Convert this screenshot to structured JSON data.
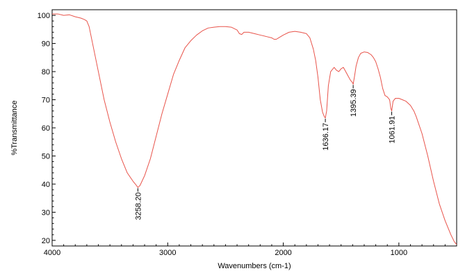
{
  "chart_data": {
    "type": "line",
    "xlabel": "Wavenumbers (cm-1)",
    "ylabel": "%Transmittance",
    "xlim": [
      4000,
      500
    ],
    "ylim": [
      18,
      102
    ],
    "x_reversed": true,
    "x_ticks": [
      4000,
      3000,
      2000,
      1000
    ],
    "y_ticks": [
      20,
      30,
      40,
      50,
      60,
      70,
      80,
      90,
      100
    ],
    "grid": false,
    "legend": "none",
    "line_color": "#e8534a",
    "series": [
      {
        "x": [
          4000,
          3950,
          3900,
          3850,
          3800,
          3750,
          3720,
          3700,
          3680,
          3650,
          3600,
          3550,
          3500,
          3450,
          3400,
          3350,
          3300,
          3270,
          3258.2,
          3240,
          3200,
          3150,
          3100,
          3050,
          3000,
          2950,
          2900,
          2850,
          2800,
          2750,
          2700,
          2650,
          2600,
          2550,
          2500,
          2450,
          2400,
          2380,
          2360,
          2340,
          2300,
          2250,
          2200,
          2150,
          2100,
          2080,
          2060,
          2040,
          2000,
          1950,
          1900,
          1850,
          1800,
          1770,
          1740,
          1720,
          1700,
          1680,
          1660,
          1645,
          1636.17,
          1625,
          1610,
          1590,
          1560,
          1540,
          1520,
          1500,
          1480,
          1460,
          1440,
          1420,
          1400,
          1395.39,
          1385,
          1370,
          1350,
          1330,
          1300,
          1270,
          1240,
          1220,
          1200,
          1180,
          1160,
          1140,
          1120,
          1100,
          1080,
          1070,
          1061.91,
          1050,
          1030,
          1000,
          970,
          940,
          900,
          870,
          850,
          800,
          750,
          700,
          650,
          600,
          550,
          520,
          500
        ],
        "y": [
          100.5,
          100.5,
          100,
          100.2,
          99.5,
          99,
          98.5,
          98,
          96,
          90,
          80,
          70,
          62,
          55,
          49,
          44,
          41,
          39.5,
          38.8,
          39.5,
          43,
          49,
          57,
          65,
          72,
          79,
          84,
          88.5,
          91,
          93,
          94.5,
          95.5,
          95.8,
          96,
          96,
          95.8,
          94.8,
          93.5,
          93.2,
          94,
          94,
          93.5,
          93,
          92.5,
          92,
          91.5,
          91.5,
          92,
          93,
          94,
          94.3,
          94,
          93.5,
          92,
          88,
          84,
          78,
          70,
          65.5,
          64,
          63.5,
          66,
          75,
          80,
          81.5,
          80.5,
          80,
          81,
          81.5,
          80,
          78.5,
          77,
          76,
          75.5,
          78,
          82,
          85,
          86.5,
          87,
          86.8,
          86,
          85,
          83.5,
          81,
          78,
          74,
          71.5,
          71,
          70,
          67,
          66,
          69.5,
          70.5,
          70.5,
          70,
          69.5,
          68,
          66,
          64,
          58,
          50,
          41,
          33,
          27,
          22,
          19.5,
          18.5
        ]
      }
    ],
    "peak_labels": [
      {
        "x": 3258.2,
        "y": 38.8,
        "label": "3258.20"
      },
      {
        "x": 1636.17,
        "y": 63.5,
        "label": "1636.17"
      },
      {
        "x": 1395.39,
        "y": 75.5,
        "label": "1395.39"
      },
      {
        "x": 1061.91,
        "y": 66,
        "label": "1061.91"
      }
    ]
  }
}
